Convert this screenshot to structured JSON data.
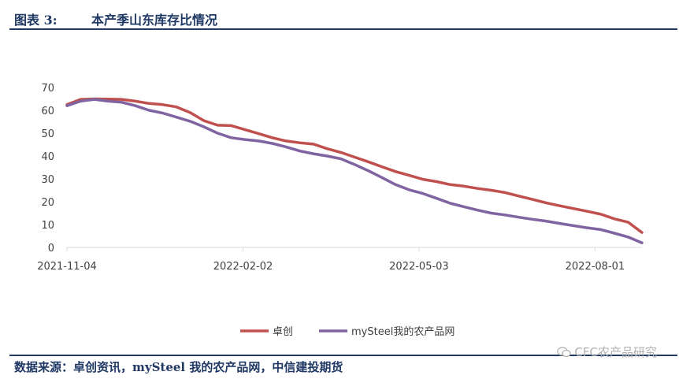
{
  "header": {
    "figure_label": "图表 3:",
    "title": "本产季山东库存比情况"
  },
  "footer": {
    "source": "数据来源：卓创资讯，mySteel 我的农产品网，中信建投期货"
  },
  "watermark": {
    "text": "CFC农产品研究",
    "icon": "wechat-icon"
  },
  "colors": {
    "navy": "#1f3864",
    "series1": "#c0504d",
    "series2": "#8064a2",
    "axis_text": "#404040",
    "axis_line": "#d9d9d9"
  },
  "chart_data": {
    "type": "line",
    "title": "",
    "xlabel": "",
    "ylabel": "",
    "ylim": [
      0,
      70
    ],
    "yticks": [
      0,
      10,
      20,
      30,
      40,
      50,
      60,
      70
    ],
    "grid": false,
    "legend": "bottom",
    "x": [
      "2021-11-04",
      "2021-11-11",
      "2021-11-18",
      "2021-11-25",
      "2021-12-02",
      "2021-12-09",
      "2021-12-16",
      "2021-12-23",
      "2021-12-30",
      "2022-01-06",
      "2022-01-13",
      "2022-01-20",
      "2022-01-27",
      "2022-02-03",
      "2022-02-10",
      "2022-02-17",
      "2022-02-24",
      "2022-03-03",
      "2022-03-10",
      "2022-03-17",
      "2022-03-24",
      "2022-03-31",
      "2022-04-07",
      "2022-04-14",
      "2022-04-21",
      "2022-04-28",
      "2022-05-05",
      "2022-05-12",
      "2022-05-19",
      "2022-05-26",
      "2022-06-02",
      "2022-06-09",
      "2022-06-16",
      "2022-06-23",
      "2022-06-30",
      "2022-07-07",
      "2022-07-14",
      "2022-07-21",
      "2022-07-28",
      "2022-08-04",
      "2022-08-11",
      "2022-08-18",
      "2022-08-25"
    ],
    "xticks": [
      "2021-11-04",
      "2022-02-02",
      "2022-05-03",
      "2022-08-01"
    ],
    "series": [
      {
        "name": "卓创",
        "color": "#c0504d",
        "values": [
          62.5,
          64.8,
          65.0,
          64.9,
          64.8,
          64.0,
          63.0,
          62.5,
          61.5,
          59.0,
          55.5,
          53.5,
          53.3,
          51.5,
          49.8,
          48.0,
          46.6,
          45.8,
          45.2,
          43.2,
          41.6,
          39.5,
          37.5,
          35.3,
          33.2,
          31.5,
          29.8,
          28.8,
          27.5,
          26.8,
          25.8,
          25.0,
          24.0,
          22.5,
          21.0,
          19.5,
          18.2,
          17.0,
          15.8,
          14.5,
          12.5,
          11.0,
          6.5
        ]
      },
      {
        "name": "mySteel我的农产品网",
        "color": "#8064a2",
        "values": [
          62.0,
          64.0,
          64.8,
          64.0,
          63.5,
          62.0,
          60.0,
          58.8,
          57.0,
          55.2,
          52.8,
          50.0,
          48.0,
          47.2,
          46.6,
          45.5,
          44.0,
          42.2,
          41.0,
          40.0,
          38.8,
          36.3,
          33.6,
          30.6,
          27.5,
          25.2,
          23.6,
          21.5,
          19.3,
          17.8,
          16.3,
          15.0,
          14.2,
          13.2,
          12.3,
          11.5,
          10.5,
          9.5,
          8.6,
          7.8,
          6.2,
          4.5,
          2.0
        ]
      }
    ]
  }
}
